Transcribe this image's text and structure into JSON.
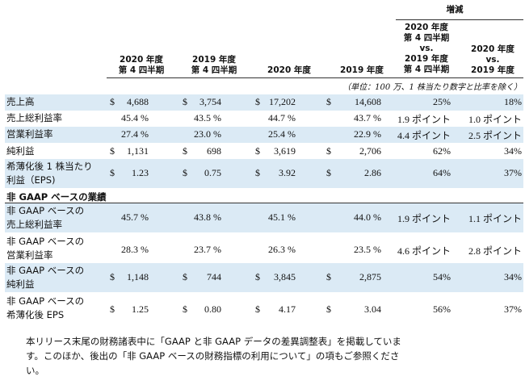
{
  "header": {
    "change_group": "増減",
    "columns": [
      {
        "line1": "2020 年度",
        "line2": "第 4 四半期"
      },
      {
        "line1": "2019 年度",
        "line2": "第 4 四半期"
      },
      {
        "line1": "2020 年度"
      },
      {
        "line1": "2019 年度"
      },
      {
        "line1": "2020 年度",
        "line2": "第 4 四半期",
        "line3": "vs.",
        "line4": "2019 年度",
        "line5": "第 4 四半期"
      },
      {
        "line1": "2020 年度",
        "line2": "vs.",
        "line3": "2019 年度"
      }
    ],
    "unit_note": "（単位：100 万、1 株当たり数字と比率を除く）"
  },
  "rows": [
    {
      "label": "売上高",
      "d1": "$",
      "v1": "4,688",
      "d2": "$",
      "v2": "3,754",
      "d3": "$",
      "v3": "17,202",
      "d4": "$",
      "v4": "14,608",
      "c1": "25%",
      "c2": "18%"
    },
    {
      "label": "売上総利益率",
      "v1": "45.4 %",
      "v2": "43.5 %",
      "v3": "44.7 %",
      "v4": "43.7 %",
      "c1": "1.9 ポイント",
      "c2": "1.0 ポイント"
    },
    {
      "label": "営業利益率",
      "v1": "27.4 %",
      "v2": "23.0 %",
      "v3": "25.4 %",
      "v4": "22.9 %",
      "c1": "4.4 ポイント",
      "c2": "2.5 ポイント"
    },
    {
      "label": "純利益",
      "d1": "$",
      "v1": "1,131",
      "d2": "$",
      "v2": "698",
      "d3": "$",
      "v3": "3,619",
      "d4": "$",
      "v4": "2,706",
      "c1": "62%",
      "c2": "34%"
    },
    {
      "label1": "希薄化後 1 株当たり",
      "label2": "利益（EPS)",
      "d1": "$",
      "v1": "1.23",
      "d2": "$",
      "v2": "0.75",
      "d3": "$",
      "v3": "3.92",
      "d4": "$",
      "v4": "2.86",
      "c1": "64%",
      "c2": "37%"
    }
  ],
  "section_title": "非 GAAP ベースの業績",
  "nongaap_rows": [
    {
      "label1": "非 GAAP ベースの",
      "label2": "売上総利益率",
      "v1": "45.7 %",
      "v2": "43.8 %",
      "v3": "45.1 %",
      "v4": "44.0 %",
      "c1": "1.9 ポイント",
      "c2": "1.1 ポイント"
    },
    {
      "label1": "非 GAAP ベースの",
      "label2": "営業利益率",
      "v1": "28.3 %",
      "v2": "23.7 %",
      "v3": "26.3 %",
      "v4": "23.5 %",
      "c1": "4.6 ポイント",
      "c2": "2.8 ポイント"
    },
    {
      "label1": "非 GAAP ベースの",
      "label2": "純利益",
      "d1": "$",
      "v1": "1,148",
      "d2": "$",
      "v2": "744",
      "d3": "$",
      "v3": "3,845",
      "d4": "$",
      "v4": "2,875",
      "c1": "54%",
      "c2": "34%"
    },
    {
      "label1": "非 GAAP ベースの",
      "label2": "希薄化後 EPS",
      "d1": "$",
      "v1": "1.25",
      "d2": "$",
      "v2": "0.80",
      "d3": "$",
      "v3": "4.17",
      "d4": "$",
      "v4": "3.04",
      "c1": "56%",
      "c2": "37%"
    }
  ],
  "footnote": {
    "line1": "本リリース末尾の財務諸表中に「GAAP と非 GAAP データの差異調整表」を掲載していま",
    "line2": "す。このほか、後出の「非 GAAP ベースの財務指標の利用について」の項もご参照くださ",
    "line3": "い。"
  }
}
